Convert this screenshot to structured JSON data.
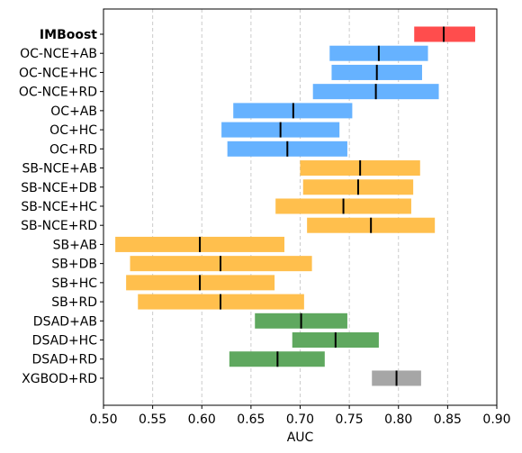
{
  "chart_data": {
    "type": "bar",
    "orientation": "horizontal",
    "title": "",
    "xlabel": "AUC",
    "ylabel": "",
    "xlim": [
      0.5,
      0.9
    ],
    "xticks": [
      "0.50",
      "0.55",
      "0.60",
      "0.65",
      "0.70",
      "0.75",
      "0.80",
      "0.85",
      "0.90"
    ],
    "grid": "vertical dashed",
    "legend": "none",
    "bars": [
      {
        "label": "IMBoost",
        "low": 0.816,
        "high": 0.878,
        "mean": 0.846,
        "color": "#ff4d4d",
        "bold": true
      },
      {
        "label": "OC-NCE+AB",
        "low": 0.73,
        "high": 0.83,
        "mean": 0.78,
        "color": "#66b2ff"
      },
      {
        "label": "OC-NCE+HC",
        "low": 0.732,
        "high": 0.824,
        "mean": 0.778,
        "color": "#66b2ff"
      },
      {
        "label": "OC-NCE+RD",
        "low": 0.713,
        "high": 0.841,
        "mean": 0.777,
        "color": "#66b2ff"
      },
      {
        "label": "OC+AB",
        "low": 0.632,
        "high": 0.753,
        "mean": 0.693,
        "color": "#66b2ff"
      },
      {
        "label": "OC+HC",
        "low": 0.62,
        "high": 0.74,
        "mean": 0.68,
        "color": "#66b2ff"
      },
      {
        "label": "OC+RD",
        "low": 0.626,
        "high": 0.748,
        "mean": 0.687,
        "color": "#66b2ff"
      },
      {
        "label": "SB-NCE+AB",
        "low": 0.7,
        "high": 0.822,
        "mean": 0.761,
        "color": "#ffbf4d"
      },
      {
        "label": "SB-NCE+DB",
        "low": 0.703,
        "high": 0.815,
        "mean": 0.759,
        "color": "#ffbf4d"
      },
      {
        "label": "SB-NCE+HC",
        "low": 0.675,
        "high": 0.813,
        "mean": 0.744,
        "color": "#ffbf4d"
      },
      {
        "label": "SB-NCE+RD",
        "low": 0.707,
        "high": 0.837,
        "mean": 0.772,
        "color": "#ffbf4d"
      },
      {
        "label": "SB+AB",
        "low": 0.512,
        "high": 0.684,
        "mean": 0.598,
        "color": "#ffbf4d"
      },
      {
        "label": "SB+DB",
        "low": 0.527,
        "high": 0.712,
        "mean": 0.619,
        "color": "#ffbf4d"
      },
      {
        "label": "SB+HC",
        "low": 0.523,
        "high": 0.674,
        "mean": 0.598,
        "color": "#ffbf4d"
      },
      {
        "label": "SB+RD",
        "low": 0.535,
        "high": 0.704,
        "mean": 0.619,
        "color": "#ffbf4d"
      },
      {
        "label": "DSAD+AB",
        "low": 0.654,
        "high": 0.748,
        "mean": 0.701,
        "color": "#5fa85f"
      },
      {
        "label": "DSAD+HC",
        "low": 0.692,
        "high": 0.78,
        "mean": 0.736,
        "color": "#5fa85f"
      },
      {
        "label": "DSAD+RD",
        "low": 0.628,
        "high": 0.725,
        "mean": 0.677,
        "color": "#5fa85f"
      },
      {
        "label": "XGBOD+RD",
        "low": 0.773,
        "high": 0.823,
        "mean": 0.798,
        "color": "#a6a6a6"
      }
    ]
  }
}
